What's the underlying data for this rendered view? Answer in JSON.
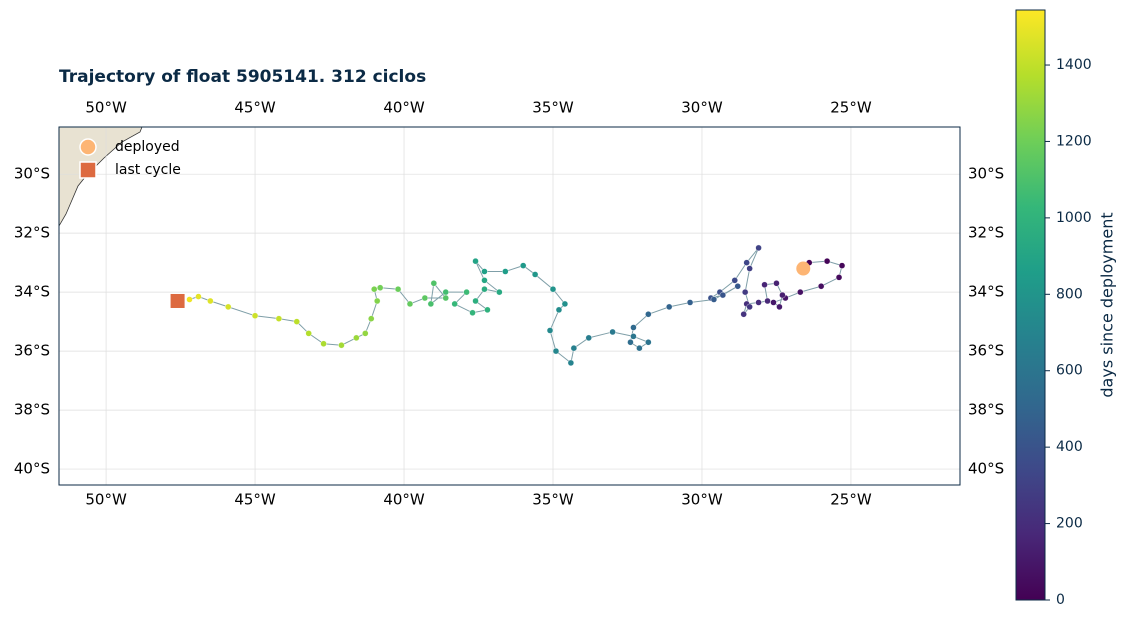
{
  "chart_data": {
    "type": "scatter",
    "title": "Trajectory of float 5905141. 312 ciclos",
    "xlim": [
      -51.58,
      -21.34
    ],
    "ylim": [
      -40.54,
      -28.4
    ],
    "xticks": [
      {
        "value": -50,
        "label": "50°W"
      },
      {
        "value": -45,
        "label": "45°W"
      },
      {
        "value": -40,
        "label": "40°W"
      },
      {
        "value": -35,
        "label": "35°W"
      },
      {
        "value": -30,
        "label": "30°W"
      },
      {
        "value": -25,
        "label": "25°W"
      }
    ],
    "yticks": [
      {
        "value": -30,
        "label": "30°S"
      },
      {
        "value": -32,
        "label": "32°S"
      },
      {
        "value": -34,
        "label": "34°S"
      },
      {
        "value": -36,
        "label": "36°S"
      },
      {
        "value": -38,
        "label": "38°S"
      },
      {
        "value": -40,
        "label": "40°S"
      }
    ],
    "grid": true,
    "x": [
      -26.4,
      -25.8,
      -25.3,
      -25.4,
      -26.0,
      -26.7,
      -27.2,
      -27.6,
      -27.4,
      -27.3,
      -27.5,
      -27.9,
      -27.8,
      -28.1,
      -28.5,
      -28.6,
      -28.4,
      -28.55,
      -28.4,
      -28.1,
      -28.5,
      -28.9,
      -29.4,
      -29.7,
      -29.3,
      -28.8,
      -29.6,
      -30.4,
      -31.1,
      -31.8,
      -32.3,
      -32.4,
      -32.1,
      -31.8,
      -32.3,
      -33.0,
      -33.8,
      -34.3,
      -34.4,
      -34.9,
      -35.1,
      -34.8,
      -34.6,
      -35.0,
      -35.6,
      -36.0,
      -36.6,
      -37.3,
      -37.6,
      -37.3,
      -36.8,
      -37.3,
      -37.6,
      -37.2,
      -37.7,
      -38.3,
      -37.9,
      -38.6,
      -39.1,
      -39.0,
      -38.6,
      -39.3,
      -39.8,
      -40.2,
      -40.8,
      -41.0,
      -40.9,
      -41.1,
      -41.3,
      -41.6,
      -42.1,
      -42.7,
      -43.2,
      -43.6,
      -44.2,
      -45.0,
      -45.9,
      -46.5,
      -46.9,
      -47.2
    ],
    "y": [
      -33.0,
      -32.95,
      -33.1,
      -33.5,
      -33.8,
      -34.0,
      -34.2,
      -34.35,
      -34.5,
      -34.1,
      -33.7,
      -33.75,
      -34.3,
      -34.35,
      -34.4,
      -34.75,
      -34.5,
      -34.0,
      -33.2,
      -32.5,
      -33.0,
      -33.6,
      -34.0,
      -34.2,
      -34.1,
      -33.8,
      -34.25,
      -34.35,
      -34.5,
      -34.75,
      -35.2,
      -35.7,
      -35.9,
      -35.7,
      -35.5,
      -35.35,
      -35.55,
      -35.9,
      -36.4,
      -36.0,
      -35.3,
      -34.6,
      -34.4,
      -33.9,
      -33.4,
      -33.1,
      -33.3,
      -33.3,
      -32.95,
      -33.6,
      -34.0,
      -33.9,
      -34.3,
      -34.6,
      -34.7,
      -34.4,
      -34.0,
      -34.0,
      -34.4,
      -33.7,
      -34.2,
      -34.2,
      -34.4,
      -33.9,
      -33.85,
      -33.9,
      -34.3,
      -34.9,
      -35.4,
      -35.55,
      -35.8,
      -35.75,
      -35.4,
      -35.0,
      -34.9,
      -34.8,
      -34.5,
      -34.3,
      -34.15,
      -34.25
    ],
    "days": [
      5,
      15,
      25,
      40,
      55,
      70,
      85,
      100,
      115,
      130,
      145,
      160,
      175,
      190,
      210,
      230,
      250,
      270,
      290,
      310,
      330,
      350,
      370,
      390,
      410,
      430,
      450,
      470,
      490,
      510,
      530,
      550,
      570,
      590,
      610,
      630,
      650,
      670,
      690,
      710,
      730,
      750,
      770,
      790,
      810,
      830,
      850,
      870,
      890,
      910,
      930,
      950,
      970,
      990,
      1010,
      1030,
      1050,
      1070,
      1090,
      1110,
      1130,
      1150,
      1170,
      1190,
      1210,
      1230,
      1250,
      1270,
      1290,
      1310,
      1330,
      1350,
      1370,
      1390,
      1410,
      1430,
      1450,
      1470,
      1490,
      1510
    ],
    "deployed": {
      "name": "deployed",
      "x": -26.6,
      "y": -33.2,
      "color": "#fdb574"
    },
    "last_cycle": {
      "name": "last cycle",
      "x": -47.6,
      "y": -34.3,
      "color": "#dd6a40"
    },
    "legend": "upper left",
    "colorbar": {
      "label": "days since deployment",
      "lim": [
        0,
        1544
      ],
      "ticks": [
        0,
        200,
        400,
        600,
        800,
        1000,
        1200,
        1400
      ],
      "colormap": [
        "#440154",
        "#482878",
        "#3e4989",
        "#31688e",
        "#26828e",
        "#1f9e89",
        "#35b779",
        "#6ece58",
        "#b5de2b",
        "#fde725"
      ]
    }
  }
}
